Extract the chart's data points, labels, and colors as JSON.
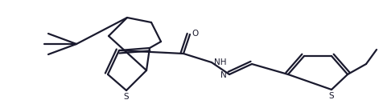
{
  "background_color": "#ffffff",
  "line_color": "#1a1a2e",
  "line_width": 1.6,
  "figsize": [
    4.71,
    1.35
  ],
  "dpi": 100,
  "xlim": [
    0,
    471
  ],
  "ylim": [
    0,
    135
  ]
}
